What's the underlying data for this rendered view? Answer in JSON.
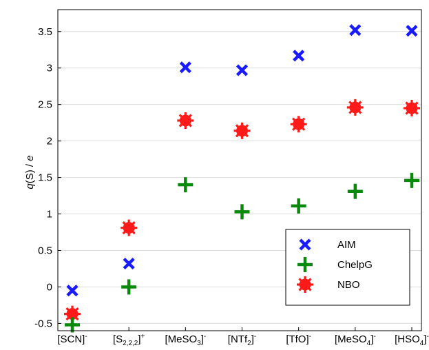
{
  "chart_data": {
    "type": "scatter",
    "ylabel_var": "q",
    "ylabel_rest": "(S) / ",
    "ylabel_unit": "e",
    "xlabel": "",
    "ylim": [
      -0.6,
      3.8
    ],
    "yticks": [
      "-0.5",
      "0",
      "0.5",
      "1",
      "1.5",
      "2",
      "2.5",
      "3",
      "3.5"
    ],
    "ytick_values": [
      -0.5,
      0,
      0.5,
      1,
      1.5,
      2,
      2.5,
      3,
      3.5
    ],
    "grid": "horizontal",
    "legend_position": "lower-right",
    "categories": [
      {
        "base": "[SCN]",
        "sub": "",
        "after": "",
        "sup": "-"
      },
      {
        "base": "[S",
        "sub": "2,2,2",
        "after": "]",
        "sup": "+"
      },
      {
        "base": "[MeSO",
        "sub": "3",
        "after": "]",
        "sup": "-"
      },
      {
        "base": "[NTf",
        "sub": "2",
        "after": "]",
        "sup": "-"
      },
      {
        "base": "[TfO]",
        "sub": "",
        "after": "",
        "sup": "-"
      },
      {
        "base": "[MeSO",
        "sub": "4",
        "after": "]",
        "sup": "-"
      },
      {
        "base": "[HSO",
        "sub": "4",
        "after": "]",
        "sup": "-"
      }
    ],
    "series": [
      {
        "name": "AIM",
        "marker": "x",
        "color": "#1a1aff",
        "values": [
          -0.05,
          0.32,
          3.01,
          2.97,
          3.17,
          3.52,
          3.51
        ]
      },
      {
        "name": "ChelpG",
        "marker": "plus",
        "color": "#0a8a0a",
        "values": [
          -0.52,
          0.0,
          1.4,
          1.03,
          1.11,
          1.31,
          1.46
        ]
      },
      {
        "name": "NBO",
        "marker": "asterisk",
        "color": "#ff1a1a",
        "values": [
          -0.37,
          0.81,
          2.28,
          2.14,
          2.23,
          2.46,
          2.45
        ]
      }
    ]
  }
}
